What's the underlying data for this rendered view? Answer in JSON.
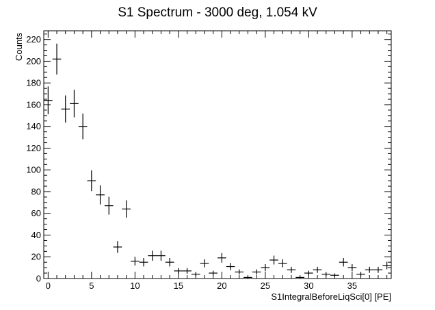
{
  "chart_data": {
    "type": "scatter",
    "title": "S1 Spectrum - 3000 deg, 1.054 kV",
    "xlabel": "S1IntegralBeforeLiqSci[0] [PE]",
    "ylabel": "Counts",
    "xlim": [
      -0.5,
      39.5
    ],
    "ylim": [
      0,
      228
    ],
    "x_ticks": [
      0,
      5,
      10,
      15,
      20,
      25,
      30,
      35
    ],
    "y_ticks": [
      0,
      20,
      40,
      60,
      80,
      100,
      120,
      140,
      160,
      180,
      200,
      220
    ],
    "grid": false,
    "legend": "none",
    "points": [
      {
        "x": 0,
        "y": 164,
        "err": 12.8,
        "xerr": 0.5
      },
      {
        "x": 1,
        "y": 202,
        "err": 14.2,
        "xerr": 0.5
      },
      {
        "x": 2,
        "y": 156,
        "err": 12.5,
        "xerr": 0.5
      },
      {
        "x": 3,
        "y": 161,
        "err": 12.7,
        "xerr": 0.5
      },
      {
        "x": 4,
        "y": 140,
        "err": 11.8,
        "xerr": 0.5
      },
      {
        "x": 5,
        "y": 90,
        "err": 9.5,
        "xerr": 0.5
      },
      {
        "x": 6,
        "y": 77,
        "err": 8.8,
        "xerr": 0.5
      },
      {
        "x": 7,
        "y": 67,
        "err": 8.2,
        "xerr": 0.5
      },
      {
        "x": 8,
        "y": 29,
        "err": 5.4,
        "xerr": 0.5
      },
      {
        "x": 9,
        "y": 64,
        "err": 8.0,
        "xerr": 0.5
      },
      {
        "x": 10,
        "y": 16,
        "err": 4.0,
        "xerr": 0.5
      },
      {
        "x": 11,
        "y": 15,
        "err": 3.9,
        "xerr": 0.5
      },
      {
        "x": 12,
        "y": 21,
        "err": 4.6,
        "xerr": 0.5
      },
      {
        "x": 13,
        "y": 21,
        "err": 4.6,
        "xerr": 0.5
      },
      {
        "x": 14,
        "y": 15,
        "err": 3.9,
        "xerr": 0.5
      },
      {
        "x": 15,
        "y": 7,
        "err": 2.6,
        "xerr": 0.5
      },
      {
        "x": 16,
        "y": 7,
        "err": 2.6,
        "xerr": 0.5
      },
      {
        "x": 17,
        "y": 4,
        "err": 2.0,
        "xerr": 0.5
      },
      {
        "x": 18,
        "y": 14,
        "err": 3.7,
        "xerr": 0.5
      },
      {
        "x": 19,
        "y": 5,
        "err": 2.2,
        "xerr": 0.5
      },
      {
        "x": 20,
        "y": 19,
        "err": 4.4,
        "xerr": 0.5
      },
      {
        "x": 21,
        "y": 11,
        "err": 3.3,
        "xerr": 0.5
      },
      {
        "x": 22,
        "y": 6,
        "err": 2.4,
        "xerr": 0.5
      },
      {
        "x": 23,
        "y": 1,
        "err": 1.0,
        "xerr": 0.5
      },
      {
        "x": 24,
        "y": 6,
        "err": 2.4,
        "xerr": 0.5
      },
      {
        "x": 25,
        "y": 10,
        "err": 3.2,
        "xerr": 0.5
      },
      {
        "x": 26,
        "y": 17,
        "err": 4.1,
        "xerr": 0.5
      },
      {
        "x": 27,
        "y": 14,
        "err": 3.7,
        "xerr": 0.5
      },
      {
        "x": 28,
        "y": 8,
        "err": 2.8,
        "xerr": 0.5
      },
      {
        "x": 29,
        "y": 1,
        "err": 1.0,
        "xerr": 0.5
      },
      {
        "x": 30,
        "y": 5,
        "err": 2.2,
        "xerr": 0.5
      },
      {
        "x": 31,
        "y": 8,
        "err": 2.8,
        "xerr": 0.5
      },
      {
        "x": 32,
        "y": 4,
        "err": 2.0,
        "xerr": 0.5
      },
      {
        "x": 33,
        "y": 3,
        "err": 1.7,
        "xerr": 0.5
      },
      {
        "x": 34,
        "y": 15,
        "err": 3.9,
        "xerr": 0.5
      },
      {
        "x": 35,
        "y": 10,
        "err": 3.2,
        "xerr": 0.5
      },
      {
        "x": 36,
        "y": 4,
        "err": 2.0,
        "xerr": 0.5
      },
      {
        "x": 37,
        "y": 8,
        "err": 2.8,
        "xerr": 0.5
      },
      {
        "x": 38,
        "y": 8,
        "err": 2.8,
        "xerr": 0.5
      },
      {
        "x": 39,
        "y": 12,
        "err": 3.5,
        "xerr": 0.5
      }
    ]
  }
}
